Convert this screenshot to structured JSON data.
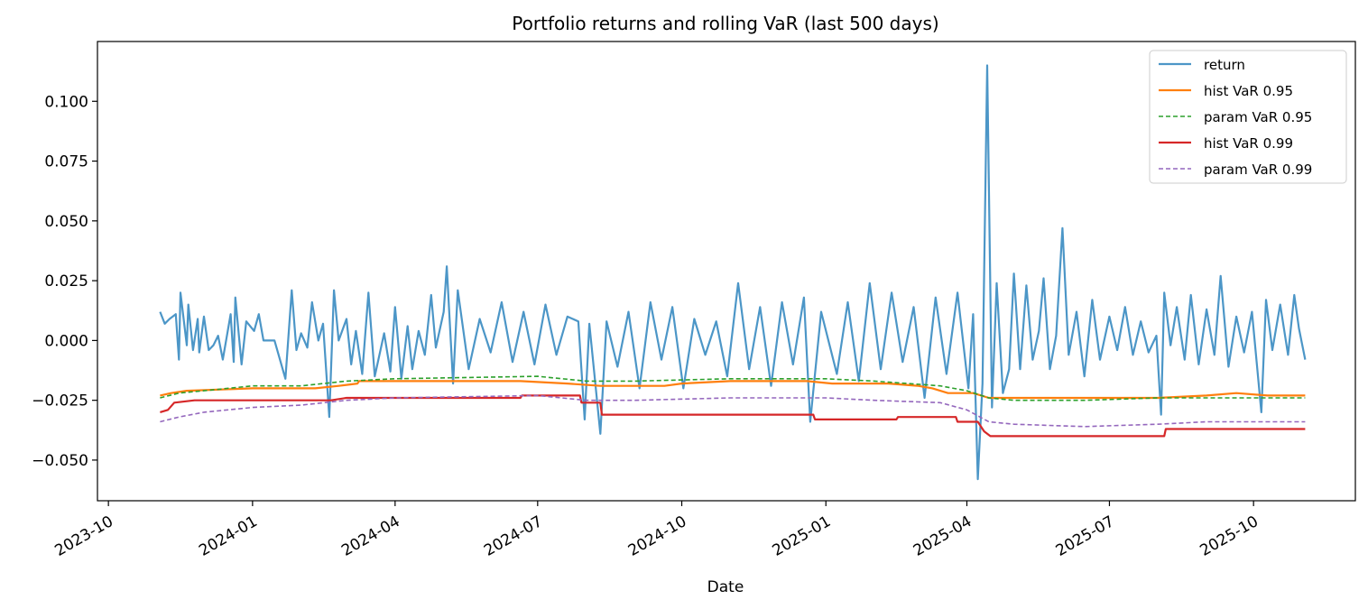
{
  "chart_data": {
    "type": "line",
    "title": "Portfolio returns and rolling VaR (last 500 days)",
    "xlabel": "Date",
    "ylabel": "",
    "x_axis": "date",
    "xlim": [
      "2023-09-24",
      "2025-12-05"
    ],
    "ylim": [
      -0.067,
      0.125
    ],
    "x_ticks": [
      "2023-10",
      "2024-01",
      "2024-04",
      "2024-07",
      "2024-10",
      "2025-01",
      "2025-04",
      "2025-07",
      "2025-10"
    ],
    "y_ticks": [
      0.1,
      0.075,
      0.05,
      0.025,
      0.0,
      -0.025,
      -0.05
    ],
    "y_tick_labels": [
      "0.100",
      "0.075",
      "0.050",
      "0.025",
      "0.000",
      "−0.025",
      "−0.050"
    ],
    "grid": false,
    "legend_position": "top-right",
    "series": [
      {
        "name": "return",
        "color": "#4c96c7",
        "style": "solid",
        "points": [
          [
            "2023-11-03",
            0.012
          ],
          [
            "2023-11-06",
            0.007
          ],
          [
            "2023-11-09",
            0.009
          ],
          [
            "2023-11-13",
            0.011
          ],
          [
            "2023-11-15",
            -0.008
          ],
          [
            "2023-11-16",
            0.02
          ],
          [
            "2023-11-20",
            -0.002
          ],
          [
            "2023-11-21",
            0.015
          ],
          [
            "2023-11-24",
            -0.004
          ],
          [
            "2023-11-27",
            0.009
          ],
          [
            "2023-11-28",
            -0.005
          ],
          [
            "2023-12-01",
            0.01
          ],
          [
            "2023-12-04",
            -0.004
          ],
          [
            "2023-12-07",
            -0.002
          ],
          [
            "2023-12-10",
            0.002
          ],
          [
            "2023-12-13",
            -0.008
          ],
          [
            "2023-12-18",
            0.011
          ],
          [
            "2023-12-20",
            -0.009
          ],
          [
            "2023-12-21",
            0.018
          ],
          [
            "2023-12-25",
            -0.01
          ],
          [
            "2023-12-28",
            0.008
          ],
          [
            "2024-01-02",
            0.004
          ],
          [
            "2024-01-05",
            0.011
          ],
          [
            "2024-01-08",
            0.0
          ],
          [
            "2024-01-15",
            0.0
          ],
          [
            "2024-01-22",
            -0.016
          ],
          [
            "2024-01-26",
            0.021
          ],
          [
            "2024-01-29",
            -0.004
          ],
          [
            "2024-02-01",
            0.003
          ],
          [
            "2024-02-05",
            -0.003
          ],
          [
            "2024-02-08",
            0.016
          ],
          [
            "2024-02-12",
            0.0
          ],
          [
            "2024-02-15",
            0.007
          ],
          [
            "2024-02-19",
            -0.032
          ],
          [
            "2024-02-22",
            0.021
          ],
          [
            "2024-02-25",
            0.0
          ],
          [
            "2024-03-01",
            0.009
          ],
          [
            "2024-03-04",
            -0.01
          ],
          [
            "2024-03-07",
            0.004
          ],
          [
            "2024-03-11",
            -0.014
          ],
          [
            "2024-03-15",
            0.02
          ],
          [
            "2024-03-19",
            -0.015
          ],
          [
            "2024-03-25",
            0.003
          ],
          [
            "2024-03-29",
            -0.013
          ],
          [
            "2024-04-01",
            0.014
          ],
          [
            "2024-04-05",
            -0.016
          ],
          [
            "2024-04-09",
            0.006
          ],
          [
            "2024-04-12",
            -0.012
          ],
          [
            "2024-04-16",
            0.004
          ],
          [
            "2024-04-20",
            -0.006
          ],
          [
            "2024-04-24",
            0.019
          ],
          [
            "2024-04-27",
            -0.003
          ],
          [
            "2024-05-02",
            0.012
          ],
          [
            "2024-05-04",
            0.031
          ],
          [
            "2024-05-08",
            -0.018
          ],
          [
            "2024-05-11",
            0.021
          ],
          [
            "2024-05-18",
            -0.012
          ],
          [
            "2024-05-25",
            0.009
          ],
          [
            "2024-06-01",
            -0.005
          ],
          [
            "2024-06-08",
            0.016
          ],
          [
            "2024-06-15",
            -0.009
          ],
          [
            "2024-06-22",
            0.012
          ],
          [
            "2024-06-29",
            -0.01
          ],
          [
            "2024-07-06",
            0.015
          ],
          [
            "2024-07-13",
            -0.006
          ],
          [
            "2024-07-20",
            0.01
          ],
          [
            "2024-07-27",
            0.008
          ],
          [
            "2024-07-31",
            -0.033
          ],
          [
            "2024-08-03",
            0.007
          ],
          [
            "2024-08-10",
            -0.039
          ],
          [
            "2024-08-14",
            0.008
          ],
          [
            "2024-08-21",
            -0.011
          ],
          [
            "2024-08-28",
            0.012
          ],
          [
            "2024-09-04",
            -0.02
          ],
          [
            "2024-09-11",
            0.016
          ],
          [
            "2024-09-18",
            -0.008
          ],
          [
            "2024-09-25",
            0.014
          ],
          [
            "2024-10-02",
            -0.02
          ],
          [
            "2024-10-09",
            0.009
          ],
          [
            "2024-10-16",
            -0.006
          ],
          [
            "2024-10-23",
            0.008
          ],
          [
            "2024-10-30",
            -0.015
          ],
          [
            "2024-11-06",
            0.024
          ],
          [
            "2024-11-13",
            -0.012
          ],
          [
            "2024-11-20",
            0.014
          ],
          [
            "2024-11-27",
            -0.019
          ],
          [
            "2024-12-04",
            0.016
          ],
          [
            "2024-12-11",
            -0.01
          ],
          [
            "2024-12-18",
            0.018
          ],
          [
            "2024-12-22",
            -0.034
          ],
          [
            "2024-12-29",
            0.012
          ],
          [
            "2025-01-08",
            -0.014
          ],
          [
            "2025-01-15",
            0.016
          ],
          [
            "2025-01-22",
            -0.017
          ],
          [
            "2025-01-29",
            0.024
          ],
          [
            "2025-02-05",
            -0.012
          ],
          [
            "2025-02-12",
            0.02
          ],
          [
            "2025-02-19",
            -0.009
          ],
          [
            "2025-02-26",
            0.014
          ],
          [
            "2025-03-05",
            -0.024
          ],
          [
            "2025-03-12",
            0.018
          ],
          [
            "2025-03-19",
            -0.014
          ],
          [
            "2025-03-26",
            0.02
          ],
          [
            "2025-04-02",
            -0.02
          ],
          [
            "2025-04-05",
            0.011
          ],
          [
            "2025-04-08",
            -0.058
          ],
          [
            "2025-04-11",
            -0.018
          ],
          [
            "2025-04-14",
            0.115
          ],
          [
            "2025-04-17",
            -0.028
          ],
          [
            "2025-04-20",
            0.024
          ],
          [
            "2025-04-24",
            -0.022
          ],
          [
            "2025-04-28",
            -0.012
          ],
          [
            "2025-05-01",
            0.028
          ],
          [
            "2025-05-05",
            -0.012
          ],
          [
            "2025-05-09",
            0.023
          ],
          [
            "2025-05-13",
            -0.008
          ],
          [
            "2025-05-17",
            0.004
          ],
          [
            "2025-05-20",
            0.026
          ],
          [
            "2025-05-24",
            -0.012
          ],
          [
            "2025-05-28",
            0.002
          ],
          [
            "2025-06-01",
            0.047
          ],
          [
            "2025-06-05",
            -0.006
          ],
          [
            "2025-06-10",
            0.012
          ],
          [
            "2025-06-15",
            -0.015
          ],
          [
            "2025-06-20",
            0.017
          ],
          [
            "2025-06-25",
            -0.008
          ],
          [
            "2025-07-01",
            0.01
          ],
          [
            "2025-07-06",
            -0.004
          ],
          [
            "2025-07-11",
            0.014
          ],
          [
            "2025-07-16",
            -0.006
          ],
          [
            "2025-07-21",
            0.008
          ],
          [
            "2025-07-26",
            -0.005
          ],
          [
            "2025-07-31",
            0.002
          ],
          [
            "2025-08-03",
            -0.031
          ],
          [
            "2025-08-05",
            0.02
          ],
          [
            "2025-08-09",
            -0.002
          ],
          [
            "2025-08-13",
            0.014
          ],
          [
            "2025-08-18",
            -0.008
          ],
          [
            "2025-08-22",
            0.019
          ],
          [
            "2025-08-27",
            -0.01
          ],
          [
            "2025-09-01",
            0.013
          ],
          [
            "2025-09-06",
            -0.006
          ],
          [
            "2025-09-10",
            0.027
          ],
          [
            "2025-09-15",
            -0.011
          ],
          [
            "2025-09-20",
            0.01
          ],
          [
            "2025-09-25",
            -0.005
          ],
          [
            "2025-09-30",
            0.012
          ],
          [
            "2025-10-03",
            -0.009
          ],
          [
            "2025-10-06",
            -0.03
          ],
          [
            "2025-10-09",
            0.017
          ],
          [
            "2025-10-13",
            -0.004
          ],
          [
            "2025-10-18",
            0.015
          ],
          [
            "2025-10-23",
            -0.006
          ],
          [
            "2025-10-27",
            0.019
          ],
          [
            "2025-10-30",
            0.005
          ],
          [
            "2025-11-03",
            -0.008
          ]
        ]
      },
      {
        "name": "hist VaR 0.95",
        "color": "#ff7f0e",
        "style": "solid",
        "points": [
          [
            "2023-11-03",
            -0.023
          ],
          [
            "2023-11-10",
            -0.022
          ],
          [
            "2023-11-20",
            -0.021
          ],
          [
            "2024-01-01",
            -0.02
          ],
          [
            "2024-02-10",
            -0.02
          ],
          [
            "2024-02-25",
            -0.019
          ],
          [
            "2024-03-08",
            -0.018
          ],
          [
            "2024-03-09",
            -0.017
          ],
          [
            "2024-06-20",
            -0.017
          ],
          [
            "2024-07-20",
            -0.018
          ],
          [
            "2024-08-10",
            -0.019
          ],
          [
            "2024-09-20",
            -0.019
          ],
          [
            "2024-10-01",
            -0.018
          ],
          [
            "2024-11-01",
            -0.017
          ],
          [
            "2024-12-20",
            -0.017
          ],
          [
            "2025-01-05",
            -0.018
          ],
          [
            "2025-02-10",
            -0.018
          ],
          [
            "2025-03-01",
            -0.019
          ],
          [
            "2025-03-10",
            -0.02
          ],
          [
            "2025-03-20",
            -0.022
          ],
          [
            "2025-04-05",
            -0.022
          ],
          [
            "2025-04-15",
            -0.024
          ],
          [
            "2025-08-01",
            -0.024
          ],
          [
            "2025-09-01",
            -0.023
          ],
          [
            "2025-09-20",
            -0.022
          ],
          [
            "2025-10-10",
            -0.023
          ],
          [
            "2025-11-03",
            -0.023
          ]
        ]
      },
      {
        "name": "param VaR 0.95",
        "color": "#2ca02c",
        "style": "dashed",
        "points": [
          [
            "2023-11-03",
            -0.024
          ],
          [
            "2023-11-15",
            -0.022
          ],
          [
            "2023-12-01",
            -0.021
          ],
          [
            "2024-01-01",
            -0.019
          ],
          [
            "2024-02-01",
            -0.019
          ],
          [
            "2024-03-01",
            -0.017
          ],
          [
            "2024-04-01",
            -0.016
          ],
          [
            "2024-07-01",
            -0.015
          ],
          [
            "2024-08-01",
            -0.017
          ],
          [
            "2024-09-01",
            -0.017
          ],
          [
            "2024-11-01",
            -0.016
          ],
          [
            "2025-01-01",
            -0.016
          ],
          [
            "2025-02-01",
            -0.017
          ],
          [
            "2025-03-15",
            -0.019
          ],
          [
            "2025-04-01",
            -0.021
          ],
          [
            "2025-04-15",
            -0.024
          ],
          [
            "2025-05-01",
            -0.025
          ],
          [
            "2025-06-15",
            -0.025
          ],
          [
            "2025-08-01",
            -0.024
          ],
          [
            "2025-11-03",
            -0.024
          ]
        ]
      },
      {
        "name": "hist VaR 0.99",
        "color": "#d62728",
        "style": "solid",
        "points": [
          [
            "2023-11-03",
            -0.03
          ],
          [
            "2023-11-08",
            -0.029
          ],
          [
            "2023-11-12",
            -0.026
          ],
          [
            "2023-11-25",
            -0.025
          ],
          [
            "2024-02-20",
            -0.025
          ],
          [
            "2024-03-01",
            -0.024
          ],
          [
            "2024-06-20",
            -0.024
          ],
          [
            "2024-06-21",
            -0.023
          ],
          [
            "2024-07-28",
            -0.023
          ],
          [
            "2024-07-29",
            -0.026
          ],
          [
            "2024-08-10",
            -0.026
          ],
          [
            "2024-08-11",
            -0.031
          ],
          [
            "2024-11-01",
            -0.031
          ],
          [
            "2024-12-24",
            -0.031
          ],
          [
            "2024-12-25",
            -0.033
          ],
          [
            "2025-02-15",
            -0.033
          ],
          [
            "2025-02-16",
            -0.032
          ],
          [
            "2025-03-25",
            -0.032
          ],
          [
            "2025-03-26",
            -0.034
          ],
          [
            "2025-04-08",
            -0.034
          ],
          [
            "2025-04-12",
            -0.038
          ],
          [
            "2025-04-16",
            -0.04
          ],
          [
            "2025-08-05",
            -0.04
          ],
          [
            "2025-08-06",
            -0.037
          ],
          [
            "2025-11-03",
            -0.037
          ]
        ]
      },
      {
        "name": "param VaR 0.99",
        "color": "#9467bd",
        "style": "dashed",
        "points": [
          [
            "2023-11-03",
            -0.034
          ],
          [
            "2023-11-15",
            -0.032
          ],
          [
            "2023-12-01",
            -0.03
          ],
          [
            "2024-01-01",
            -0.028
          ],
          [
            "2024-02-01",
            -0.027
          ],
          [
            "2024-03-01",
            -0.025
          ],
          [
            "2024-04-01",
            -0.024
          ],
          [
            "2024-07-01",
            -0.023
          ],
          [
            "2024-08-01",
            -0.025
          ],
          [
            "2024-09-01",
            -0.025
          ],
          [
            "2024-11-01",
            -0.024
          ],
          [
            "2025-01-01",
            -0.024
          ],
          [
            "2025-02-01",
            -0.025
          ],
          [
            "2025-03-15",
            -0.026
          ],
          [
            "2025-04-01",
            -0.029
          ],
          [
            "2025-04-15",
            -0.034
          ],
          [
            "2025-05-01",
            -0.035
          ],
          [
            "2025-06-15",
            -0.036
          ],
          [
            "2025-08-01",
            -0.035
          ],
          [
            "2025-09-01",
            -0.034
          ],
          [
            "2025-11-03",
            -0.034
          ]
        ]
      }
    ]
  }
}
